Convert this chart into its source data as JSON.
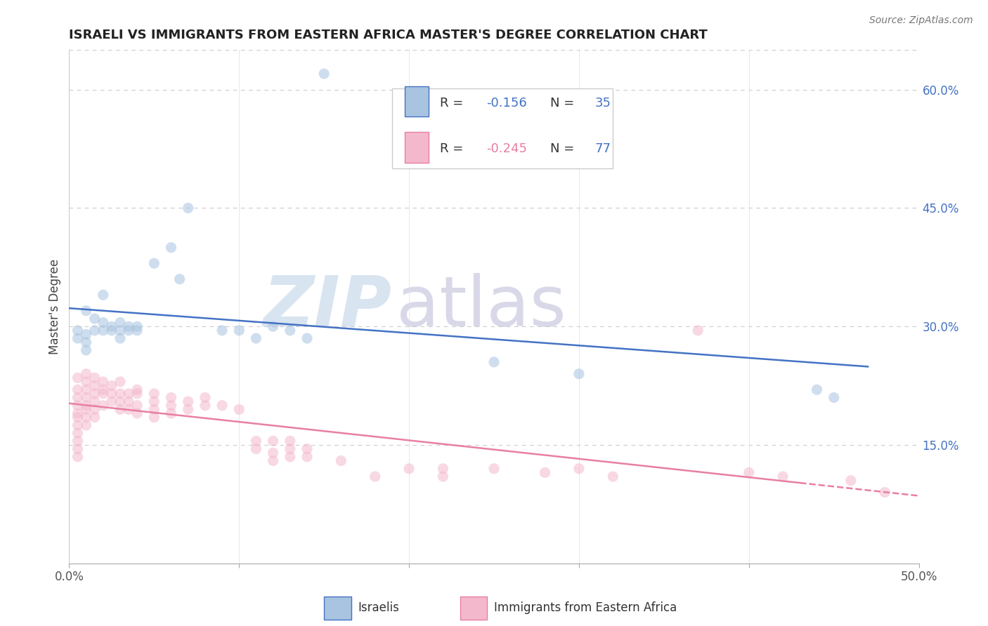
{
  "title": "ISRAELI VS IMMIGRANTS FROM EASTERN AFRICA MASTER'S DEGREE CORRELATION CHART",
  "source_text": "Source: ZipAtlas.com",
  "ylabel": "Master's Degree",
  "xlim": [
    0.0,
    0.5
  ],
  "ylim": [
    0.0,
    0.65
  ],
  "xtick_positions": [
    0.0,
    0.1,
    0.2,
    0.3,
    0.4,
    0.5
  ],
  "xtick_labels": [
    "0.0%",
    "",
    "",
    "",
    "",
    "50.0%"
  ],
  "ytick_vals_right": [
    0.15,
    0.3,
    0.45,
    0.6
  ],
  "ytick_labels_right": [
    "15.0%",
    "30.0%",
    "45.0%",
    "60.0%"
  ],
  "israeli_scatter": [
    [
      0.005,
      0.285
    ],
    [
      0.005,
      0.295
    ],
    [
      0.01,
      0.32
    ],
    [
      0.01,
      0.29
    ],
    [
      0.01,
      0.28
    ],
    [
      0.01,
      0.27
    ],
    [
      0.015,
      0.31
    ],
    [
      0.015,
      0.295
    ],
    [
      0.02,
      0.34
    ],
    [
      0.02,
      0.305
    ],
    [
      0.02,
      0.295
    ],
    [
      0.025,
      0.3
    ],
    [
      0.025,
      0.295
    ],
    [
      0.03,
      0.305
    ],
    [
      0.03,
      0.295
    ],
    [
      0.03,
      0.285
    ],
    [
      0.035,
      0.295
    ],
    [
      0.035,
      0.3
    ],
    [
      0.04,
      0.3
    ],
    [
      0.04,
      0.295
    ],
    [
      0.05,
      0.38
    ],
    [
      0.06,
      0.4
    ],
    [
      0.065,
      0.36
    ],
    [
      0.07,
      0.45
    ],
    [
      0.09,
      0.295
    ],
    [
      0.1,
      0.295
    ],
    [
      0.11,
      0.285
    ],
    [
      0.12,
      0.3
    ],
    [
      0.13,
      0.295
    ],
    [
      0.14,
      0.285
    ],
    [
      0.15,
      0.62
    ],
    [
      0.25,
      0.255
    ],
    [
      0.3,
      0.24
    ],
    [
      0.44,
      0.22
    ],
    [
      0.45,
      0.21
    ]
  ],
  "eastern_africa_scatter": [
    [
      0.005,
      0.235
    ],
    [
      0.005,
      0.22
    ],
    [
      0.005,
      0.21
    ],
    [
      0.005,
      0.2
    ],
    [
      0.005,
      0.19
    ],
    [
      0.005,
      0.185
    ],
    [
      0.005,
      0.175
    ],
    [
      0.005,
      0.165
    ],
    [
      0.005,
      0.155
    ],
    [
      0.005,
      0.145
    ],
    [
      0.005,
      0.135
    ],
    [
      0.01,
      0.24
    ],
    [
      0.01,
      0.23
    ],
    [
      0.01,
      0.22
    ],
    [
      0.01,
      0.21
    ],
    [
      0.01,
      0.2
    ],
    [
      0.01,
      0.195
    ],
    [
      0.01,
      0.185
    ],
    [
      0.01,
      0.175
    ],
    [
      0.015,
      0.235
    ],
    [
      0.015,
      0.225
    ],
    [
      0.015,
      0.215
    ],
    [
      0.015,
      0.205
    ],
    [
      0.015,
      0.195
    ],
    [
      0.015,
      0.185
    ],
    [
      0.02,
      0.23
    ],
    [
      0.02,
      0.22
    ],
    [
      0.02,
      0.215
    ],
    [
      0.02,
      0.2
    ],
    [
      0.025,
      0.225
    ],
    [
      0.025,
      0.215
    ],
    [
      0.025,
      0.205
    ],
    [
      0.03,
      0.23
    ],
    [
      0.03,
      0.215
    ],
    [
      0.03,
      0.205
    ],
    [
      0.03,
      0.195
    ],
    [
      0.035,
      0.215
    ],
    [
      0.035,
      0.205
    ],
    [
      0.035,
      0.195
    ],
    [
      0.04,
      0.22
    ],
    [
      0.04,
      0.215
    ],
    [
      0.04,
      0.2
    ],
    [
      0.04,
      0.19
    ],
    [
      0.05,
      0.215
    ],
    [
      0.05,
      0.205
    ],
    [
      0.05,
      0.195
    ],
    [
      0.05,
      0.185
    ],
    [
      0.06,
      0.21
    ],
    [
      0.06,
      0.2
    ],
    [
      0.06,
      0.19
    ],
    [
      0.07,
      0.205
    ],
    [
      0.07,
      0.195
    ],
    [
      0.08,
      0.21
    ],
    [
      0.08,
      0.2
    ],
    [
      0.09,
      0.2
    ],
    [
      0.1,
      0.195
    ],
    [
      0.11,
      0.155
    ],
    [
      0.11,
      0.145
    ],
    [
      0.12,
      0.155
    ],
    [
      0.12,
      0.14
    ],
    [
      0.12,
      0.13
    ],
    [
      0.13,
      0.155
    ],
    [
      0.13,
      0.145
    ],
    [
      0.13,
      0.135
    ],
    [
      0.14,
      0.145
    ],
    [
      0.14,
      0.135
    ],
    [
      0.16,
      0.13
    ],
    [
      0.18,
      0.11
    ],
    [
      0.2,
      0.12
    ],
    [
      0.22,
      0.12
    ],
    [
      0.22,
      0.11
    ],
    [
      0.25,
      0.12
    ],
    [
      0.28,
      0.115
    ],
    [
      0.3,
      0.12
    ],
    [
      0.32,
      0.11
    ],
    [
      0.37,
      0.295
    ],
    [
      0.4,
      0.115
    ],
    [
      0.42,
      0.11
    ],
    [
      0.46,
      0.105
    ],
    [
      0.48,
      0.09
    ]
  ],
  "israeli_line_color": "#4472c4",
  "eastern_africa_line_color": "#c0504d",
  "eastern_africa_line_color_light": "#e87fa0",
  "israeli_scatter_color": "#a8c4e0",
  "eastern_africa_scatter_color": "#f4b8cc",
  "watermark_zip": "ZIP",
  "watermark_atlas": "atlas",
  "watermark_zip_color": "#d8e4f0",
  "watermark_atlas_color": "#d8d8e8",
  "background_color": "#ffffff",
  "grid_color": "#cccccc",
  "title_fontsize": 13,
  "source_fontsize": 10,
  "scatter_size": 120,
  "scatter_alpha": 0.55
}
